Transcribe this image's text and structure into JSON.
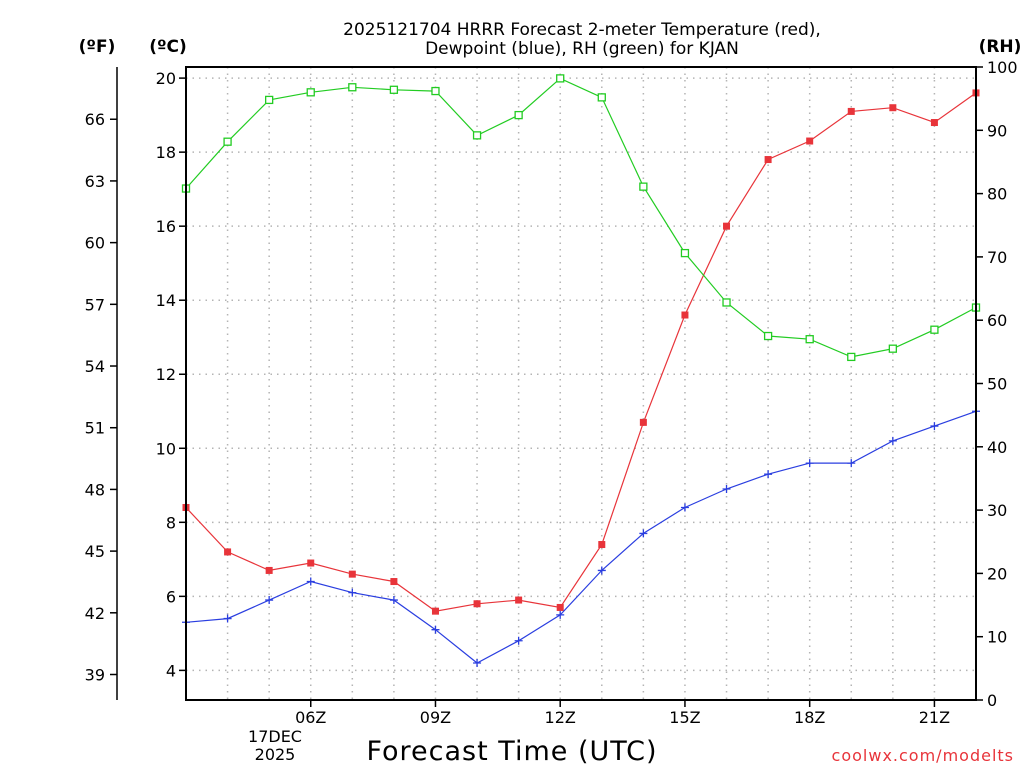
{
  "chart_data": {
    "type": "line",
    "title_line1": "2025121704 HRRR Forecast 2-meter Temperature (red),",
    "title_line2": "Dewpoint (blue), RH (green) for KJAN",
    "xlabel": "Forecast Time (UTC)",
    "credit": "coolwx.com/modelts",
    "unit_f": "(ºF)",
    "unit_c": "(ºC)",
    "unit_rh": "(RH)",
    "date_lines": [
      "17DEC",
      "2025"
    ],
    "x_hours": [
      3,
      4,
      5,
      6,
      7,
      8,
      9,
      10,
      11,
      12,
      13,
      14,
      15,
      16,
      17,
      18,
      19,
      20,
      21,
      22
    ],
    "xlim": [
      3,
      22
    ],
    "x_ticks": [
      {
        "hour": 6,
        "label": "06Z"
      },
      {
        "hour": 9,
        "label": "09Z"
      },
      {
        "hour": 12,
        "label": "12Z"
      },
      {
        "hour": 15,
        "label": "15Z"
      },
      {
        "hour": 18,
        "label": "18Z"
      },
      {
        "hour": 21,
        "label": "21Z"
      }
    ],
    "ylim_c": [
      3.2,
      20.3
    ],
    "c_ticks": [
      4,
      6,
      8,
      10,
      12,
      14,
      16,
      18,
      20
    ],
    "f_ticks": [
      39,
      42,
      45,
      48,
      51,
      54,
      57,
      60,
      63,
      66
    ],
    "ylim_rh": [
      0,
      100
    ],
    "rh_ticks": [
      0,
      10,
      20,
      30,
      40,
      50,
      60,
      70,
      80,
      90,
      100
    ],
    "series": [
      {
        "name": "Temperature",
        "unit": "C",
        "color": "#e8343a",
        "marker": "filled-square",
        "values": [
          8.4,
          7.2,
          6.7,
          6.9,
          6.6,
          6.4,
          5.6,
          5.8,
          5.9,
          5.7,
          7.4,
          10.7,
          13.6,
          16.0,
          17.8,
          18.3,
          19.1,
          19.2,
          18.8,
          19.6
        ]
      },
      {
        "name": "Dewpoint",
        "unit": "C",
        "color": "#2a3ee0",
        "marker": "plus",
        "values": [
          5.3,
          5.4,
          5.9,
          6.4,
          6.1,
          5.9,
          5.1,
          4.2,
          4.8,
          5.5,
          6.7,
          7.7,
          8.4,
          8.9,
          9.3,
          9.6,
          9.6,
          10.2,
          10.6,
          11.0
        ]
      },
      {
        "name": "RH",
        "unit": "%",
        "color": "#22cc22",
        "marker": "open-square",
        "values": [
          80.8,
          88.2,
          94.8,
          96.0,
          96.8,
          96.4,
          96.2,
          89.2,
          92.4,
          98.2,
          95.2,
          81.1,
          70.6,
          62.8,
          57.5,
          57.0,
          54.2,
          55.5,
          58.5,
          62.0
        ]
      }
    ]
  }
}
